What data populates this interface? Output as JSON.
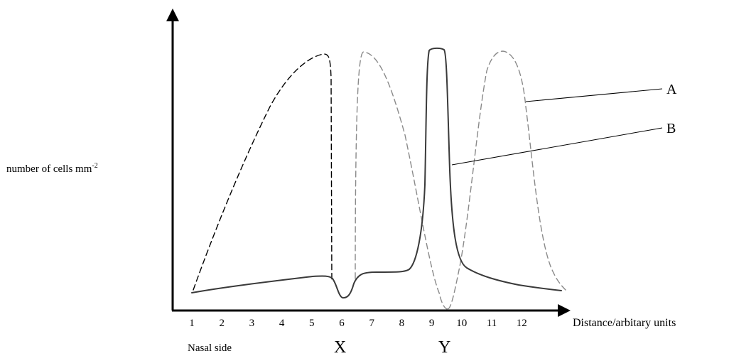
{
  "y_axis_label": "number of cells mm",
  "y_axis_label_superscript": "-2",
  "x_axis_label": "Distance/arbitary units",
  "x_ticks": [
    "1",
    "2",
    "3",
    "4",
    "5",
    "6",
    "7",
    "8",
    "9",
    "10",
    "11",
    "12"
  ],
  "side_label": "Nasal side",
  "marker_x": "X",
  "marker_y": "Y",
  "label_a": "A",
  "label_b": "B",
  "colors": {
    "curve_a_left": "#000000",
    "curve_a_right": "#8a8a8a",
    "curve_b": "#3a3a3a"
  }
}
